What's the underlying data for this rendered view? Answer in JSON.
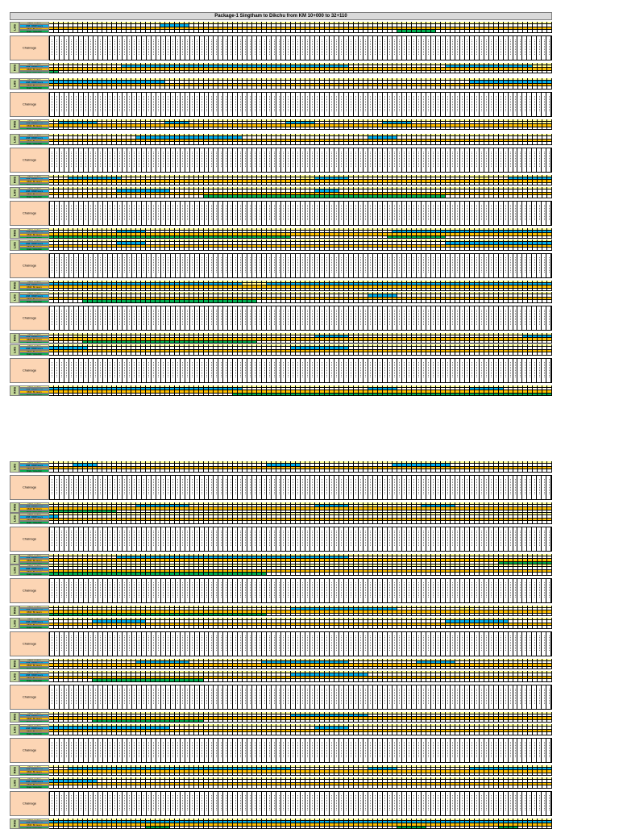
{
  "page": {
    "title": "Package-1 Singtham to Dikchu from KM 10+000 to 32+110"
  },
  "labels": {
    "lhs": "LHS",
    "rhs": "RHS",
    "chainage": "Chainage"
  },
  "row_labels": [
    "Filling / cutting",
    "GSB / WMM layers",
    "DBM / BC layers",
    "Drain / protection"
  ],
  "status_colors": {
    "s0": "#ffff99",
    "s1": "#00b0f0",
    "s2": "#ffc000",
    "s3": "#00b050",
    "none": "#ffffff"
  },
  "columns_per_block": 104,
  "blocks": [
    {
      "lhs_bars": [
        [
          1,
          23,
          29
        ],
        [
          2,
          73,
          80
        ],
        [
          3,
          72,
          80
        ]
      ],
      "rhs_bars": [
        [
          1,
          15,
          62
        ],
        [
          1,
          82,
          100
        ],
        [
          0,
          100,
          104
        ],
        [
          3,
          0,
          2
        ]
      ]
    },
    {
      "lhs_bars": [
        [
          1,
          0,
          24
        ],
        [
          1,
          87,
          104
        ]
      ],
      "rhs_bars": [
        [
          0,
          95,
          104
        ],
        [
          1,
          2,
          10
        ],
        [
          1,
          24,
          29
        ],
        [
          1,
          49,
          55
        ],
        [
          1,
          69,
          75
        ]
      ]
    },
    {
      "lhs_bars": [
        [
          1,
          18,
          40
        ],
        [
          1,
          66,
          72
        ]
      ],
      "rhs_bars": [
        [
          0,
          52,
          58
        ],
        [
          1,
          4,
          15
        ],
        [
          1,
          55,
          62
        ],
        [
          0,
          88,
          91
        ],
        [
          1,
          95,
          104
        ]
      ]
    },
    {
      "lhs_bars": [
        [
          1,
          14,
          25
        ],
        [
          1,
          55,
          60
        ],
        [
          3,
          32,
          82
        ]
      ],
      "rhs_bars": [
        [
          1,
          14,
          20
        ],
        [
          1,
          71,
          104
        ],
        [
          3,
          0,
          50
        ],
        [
          3,
          70,
          82
        ]
      ]
    },
    {
      "lhs_bars": [
        [
          1,
          14,
          20
        ],
        [
          1,
          82,
          104
        ]
      ],
      "rhs_bars": [
        [
          1,
          0,
          104
        ],
        [
          0,
          40,
          45
        ]
      ]
    },
    {
      "lhs_bars": [
        [
          1,
          66,
          72
        ],
        [
          3,
          7,
          43
        ]
      ],
      "rhs_bars": [
        [
          0,
          5,
          8
        ],
        [
          1,
          55,
          62
        ],
        [
          1,
          98,
          104
        ],
        [
          3,
          7,
          43
        ]
      ]
    },
    {
      "lhs_bars": [
        [
          1,
          0,
          8
        ],
        [
          1,
          50,
          62
        ]
      ],
      "rhs_bars": [
        [
          1,
          0,
          40
        ],
        [
          1,
          66,
          72
        ],
        [
          1,
          87,
          94
        ],
        [
          3,
          38,
          104
        ]
      ]
    },
    {
      "lhs_bars": [
        [
          1,
          5,
          10
        ],
        [
          1,
          45,
          52
        ],
        [
          1,
          71,
          83
        ]
      ],
      "rhs_bars": [
        [
          1,
          18,
          29
        ],
        [
          1,
          55,
          62
        ],
        [
          1,
          77,
          84
        ],
        [
          0,
          65,
          68
        ],
        [
          3,
          0,
          14
        ]
      ]
    },
    {
      "lhs_bars": [
        [
          1,
          0,
          2
        ]
      ],
      "rhs_bars": [
        [
          1,
          14,
          62
        ],
        [
          3,
          93,
          104
        ]
      ]
    },
    {
      "lhs_bars": [
        [
          3,
          0,
          45
        ]
      ],
      "rhs_bars": [
        [
          1,
          50,
          72
        ],
        [
          0,
          85,
          88
        ],
        [
          3,
          0,
          45
        ]
      ]
    },
    {
      "lhs_bars": [
        [
          1,
          9,
          20
        ],
        [
          1,
          82,
          95
        ]
      ],
      "rhs_bars": [
        [
          1,
          18,
          29
        ],
        [
          1,
          44,
          62
        ],
        [
          1,
          76,
          84
        ]
      ]
    },
    {
      "lhs_bars": [
        [
          1,
          50,
          66
        ],
        [
          3,
          9,
          32
        ]
      ],
      "rhs_bars": [
        [
          1,
          50,
          66
        ],
        [
          3,
          9,
          32
        ]
      ]
    },
    {
      "lhs_bars": [
        [
          1,
          0,
          25
        ],
        [
          1,
          55,
          62
        ]
      ],
      "rhs_bars": [
        [
          1,
          4,
          50
        ],
        [
          1,
          66,
          72
        ],
        [
          1,
          87,
          104
        ]
      ]
    },
    {
      "lhs_bars": [
        [
          1,
          0,
          10
        ]
      ],
      "rhs_bars": [
        [
          1,
          0,
          104
        ],
        [
          3,
          20,
          25
        ],
        [
          3,
          72,
          78
        ],
        [
          3,
          93,
          97
        ]
      ]
    }
  ]
}
